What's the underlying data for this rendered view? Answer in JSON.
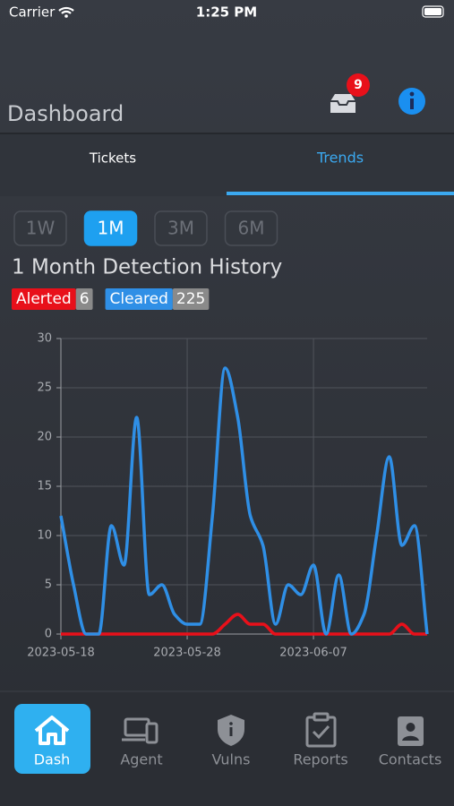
{
  "status_bar": {
    "carrier": "Carrier",
    "time": "1:25 PM"
  },
  "header": {
    "title": "Dashboard",
    "badge": "9"
  },
  "tabs": [
    "Tickets",
    "Trends"
  ],
  "ranges": [
    "1W",
    "1M",
    "3M",
    "6M"
  ],
  "chart_data": {
    "type": "line",
    "title": "1 Month Detection History",
    "x": [
      "2023-05-18",
      "2023-05-19",
      "2023-05-20",
      "2023-05-21",
      "2023-05-22",
      "2023-05-23",
      "2023-05-24",
      "2023-05-25",
      "2023-05-26",
      "2023-05-27",
      "2023-05-28",
      "2023-05-29",
      "2023-05-30",
      "2023-05-31",
      "2023-06-01",
      "2023-06-02",
      "2023-06-03",
      "2023-06-04",
      "2023-06-05",
      "2023-06-06",
      "2023-06-07",
      "2023-06-08",
      "2023-06-09",
      "2023-06-10",
      "2023-06-11",
      "2023-06-12",
      "2023-06-13",
      "2023-06-14",
      "2023-06-15",
      "2023-06-16"
    ],
    "series": [
      {
        "name": "Alerted",
        "color": "#e8101a",
        "total": 6,
        "values": [
          0,
          0,
          0,
          0,
          0,
          0,
          0,
          0,
          0,
          0,
          0,
          0,
          0,
          1,
          2,
          1,
          1,
          0,
          0,
          0,
          0,
          0,
          0,
          0,
          0,
          0,
          0,
          1,
          0,
          0
        ]
      },
      {
        "name": "Cleared",
        "color": "#2f8fe6",
        "total": 225,
        "values": [
          12,
          5,
          0,
          0,
          11,
          7,
          22,
          4,
          5,
          2,
          1,
          1,
          12,
          27,
          22,
          12,
          9,
          1,
          5,
          4,
          7,
          0,
          6,
          0,
          2,
          10,
          18,
          9,
          11,
          0
        ]
      }
    ],
    "xlim": [
      "2023-05-18",
      "2023-06-16"
    ],
    "xticks": [
      "2023-05-18",
      "2023-05-28",
      "2023-06-07"
    ],
    "ylim": [
      0,
      30
    ],
    "yticks": [
      0,
      5,
      10,
      15,
      20,
      25,
      30
    ],
    "grid": true
  },
  "nav": [
    "Dash",
    "Agent",
    "Vulns",
    "Reports",
    "Contacts"
  ]
}
